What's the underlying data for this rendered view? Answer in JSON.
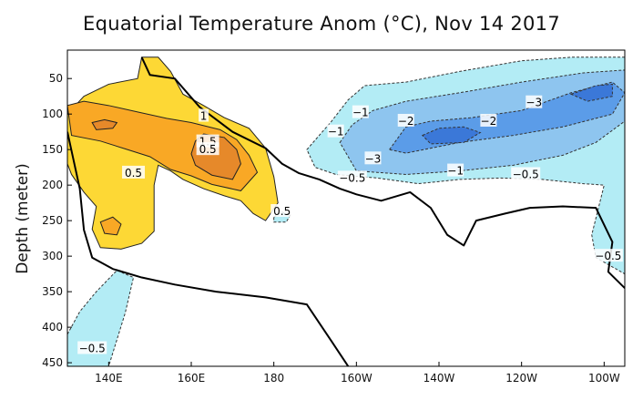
{
  "chart_data": {
    "type": "heatmap",
    "title": "Equatorial Temperature Anom (°C), Nov 14 2017",
    "ylabel": "Depth (meter)",
    "xlabel": "",
    "xlim": [
      130,
      265
    ],
    "ylim": [
      455,
      10
    ],
    "x_ticks": [
      {
        "value": 140,
        "label": "140E"
      },
      {
        "value": 160,
        "label": "160E"
      },
      {
        "value": 180,
        "label": "180"
      },
      {
        "value": 200,
        "label": "160W"
      },
      {
        "value": 220,
        "label": "140W"
      },
      {
        "value": 240,
        "label": "120W"
      },
      {
        "value": 260,
        "label": "100W"
      }
    ],
    "y_ticks": [
      50,
      100,
      150,
      200,
      250,
      300,
      350,
      400,
      450
    ],
    "colors": {
      "plus_0_5": "#fdd835",
      "plus_1": "#f9a825",
      "plus_1_5": "#e6892a",
      "minus_0_5": "#b3ecf5",
      "minus_1": "#8ec5ef",
      "minus_2": "#5b9ce8",
      "minus_3": "#3b78d8",
      "zero_line": "#000000",
      "pos_line": "#222222",
      "neg_line": "#333333"
    },
    "regions": [
      {
        "name": "warm_anom_0_5",
        "value": 0.5,
        "polygon": [
          [
            130,
            100
          ],
          [
            134,
            75
          ],
          [
            140,
            58
          ],
          [
            147,
            50
          ],
          [
            148,
            20
          ],
          [
            152,
            20
          ],
          [
            155,
            40
          ],
          [
            158,
            72
          ],
          [
            163,
            88
          ],
          [
            168,
            105
          ],
          [
            174,
            120
          ],
          [
            178,
            148
          ],
          [
            180,
            188
          ],
          [
            181,
            225
          ],
          [
            178,
            250
          ],
          [
            175,
            240
          ],
          [
            172,
            222
          ],
          [
            168,
            215
          ],
          [
            163,
            205
          ],
          [
            158,
            192
          ],
          [
            155,
            180
          ],
          [
            152,
            172
          ],
          [
            151,
            200
          ],
          [
            151,
            265
          ],
          [
            148,
            282
          ],
          [
            143,
            290
          ],
          [
            138,
            288
          ],
          [
            136,
            262
          ],
          [
            137,
            230
          ],
          [
            134,
            210
          ],
          [
            131,
            185
          ],
          [
            130,
            170
          ]
        ]
      },
      {
        "name": "warm_anom_1",
        "value": 1,
        "polygon": [
          [
            130,
            88
          ],
          [
            134,
            82
          ],
          [
            140,
            88
          ],
          [
            147,
            97
          ],
          [
            154,
            106
          ],
          [
            160,
            112
          ],
          [
            167,
            122
          ],
          [
            171,
            136
          ],
          [
            174,
            158
          ],
          [
            176,
            182
          ],
          [
            172,
            208
          ],
          [
            165,
            199
          ],
          [
            160,
            187
          ],
          [
            155,
            178
          ],
          [
            150,
            160
          ],
          [
            144,
            149
          ],
          [
            138,
            138
          ],
          [
            131,
            130
          ]
        ]
      },
      {
        "name": "warm_anom_1_5",
        "value": 1.5,
        "polygon": [
          [
            163,
            128
          ],
          [
            168,
            133
          ],
          [
            171,
            150
          ],
          [
            172,
            170
          ],
          [
            170,
            192
          ],
          [
            165,
            186
          ],
          [
            161,
            172
          ],
          [
            160,
            156
          ],
          [
            161,
            138
          ]
        ]
      },
      {
        "name": "warm_anom_1_5_b",
        "value": 1.5,
        "polygon": [
          [
            136,
            112
          ],
          [
            139,
            108
          ],
          [
            142,
            112
          ],
          [
            141,
            120
          ],
          [
            137,
            122
          ]
        ]
      },
      {
        "name": "warm_anom_1_deep",
        "value": 1,
        "polygon": [
          [
            138,
            252
          ],
          [
            141,
            245
          ],
          [
            143,
            255
          ],
          [
            142,
            270
          ],
          [
            139,
            268
          ]
        ]
      },
      {
        "name": "cool_anom_0_5",
        "value": -0.5,
        "polygon": [
          [
            188,
            150
          ],
          [
            194,
            110
          ],
          [
            198,
            80
          ],
          [
            202,
            60
          ],
          [
            212,
            55
          ],
          [
            225,
            40
          ],
          [
            240,
            25
          ],
          [
            252,
            20
          ],
          [
            265,
            20
          ],
          [
            265,
            325
          ],
          [
            258,
            302
          ],
          [
            257,
            270
          ],
          [
            260,
            200
          ],
          [
            255,
            198
          ],
          [
            245,
            192
          ],
          [
            235,
            190
          ],
          [
            225,
            192
          ],
          [
            215,
            198
          ],
          [
            205,
            190
          ],
          [
            195,
            185
          ],
          [
            190,
            175
          ]
        ]
      },
      {
        "name": "cool_anom_1",
        "value": -1,
        "polygon": [
          [
            196,
            140
          ],
          [
            199,
            115
          ],
          [
            204,
            95
          ],
          [
            212,
            82
          ],
          [
            225,
            70
          ],
          [
            240,
            55
          ],
          [
            255,
            42
          ],
          [
            265,
            38
          ],
          [
            265,
            110
          ],
          [
            258,
            140
          ],
          [
            250,
            158
          ],
          [
            238,
            172
          ],
          [
            225,
            180
          ],
          [
            212,
            185
          ],
          [
            200,
            180
          ]
        ]
      },
      {
        "name": "cool_anom_2",
        "value": -2,
        "polygon": [
          [
            208,
            150
          ],
          [
            212,
            118
          ],
          [
            218,
            110
          ],
          [
            228,
            105
          ],
          [
            240,
            95
          ],
          [
            252,
            70
          ],
          [
            262,
            55
          ],
          [
            265,
            70
          ],
          [
            262,
            100
          ],
          [
            250,
            118
          ],
          [
            238,
            130
          ],
          [
            225,
            140
          ],
          [
            212,
            155
          ]
        ]
      },
      {
        "name": "cool_anom_3",
        "value": -3,
        "polygon": [
          [
            216,
            130
          ],
          [
            220,
            120
          ],
          [
            226,
            118
          ],
          [
            230,
            126
          ],
          [
            226,
            140
          ],
          [
            218,
            142
          ]
        ]
      },
      {
        "name": "cool_anom_3_b",
        "value": -3,
        "polygon": [
          [
            252,
            72
          ],
          [
            258,
            60
          ],
          [
            262,
            58
          ],
          [
            262,
            75
          ],
          [
            256,
            82
          ]
        ]
      },
      {
        "name": "cool_anom_0_5_west",
        "value": -0.5,
        "polygon": [
          [
            130,
            410
          ],
          [
            133,
            378
          ],
          [
            137,
            350
          ],
          [
            142,
            320
          ],
          [
            146,
            330
          ],
          [
            144,
            380
          ],
          [
            140,
            455
          ],
          [
            130,
            455
          ]
        ]
      },
      {
        "name": "cool_anom_0_5_small",
        "value": -0.5,
        "polygon": [
          [
            180,
            245
          ],
          [
            182,
            238
          ],
          [
            184,
            242
          ],
          [
            183,
            252
          ],
          [
            180,
            252
          ]
        ]
      }
    ],
    "zero_contour": [
      [
        148,
        20
      ],
      [
        150,
        45
      ],
      [
        156,
        50
      ],
      [
        162,
        90
      ],
      [
        170,
        125
      ],
      [
        178,
        148
      ],
      [
        182,
        170
      ],
      [
        186,
        183
      ],
      [
        191,
        192
      ],
      [
        196,
        205
      ],
      [
        200,
        213
      ],
      [
        206,
        222
      ],
      [
        213,
        210
      ],
      [
        218,
        232
      ],
      [
        222,
        270
      ],
      [
        226,
        285
      ],
      [
        229,
        250
      ],
      [
        236,
        240
      ],
      [
        242,
        232
      ],
      [
        250,
        230
      ],
      [
        258,
        232
      ],
      [
        262,
        280
      ],
      [
        261,
        322
      ],
      [
        265,
        345
      ]
    ],
    "zero_contour_2": [
      [
        130,
        125
      ],
      [
        133,
        205
      ],
      [
        134,
        263
      ],
      [
        136,
        302
      ],
      [
        141,
        318
      ],
      [
        148,
        330
      ],
      [
        156,
        340
      ],
      [
        166,
        350
      ],
      [
        178,
        358
      ],
      [
        188,
        368
      ],
      [
        194,
        420
      ],
      [
        198,
        455
      ]
    ],
    "labels": [
      {
        "text": "1",
        "x": 163,
        "y": 103
      },
      {
        "text": "1.5",
        "x": 164,
        "y": 139
      },
      {
        "text": "0.5",
        "x": 164,
        "y": 150
      },
      {
        "text": "0.5",
        "x": 146,
        "y": 183
      },
      {
        "text": "0.5",
        "x": 182,
        "y": 237
      },
      {
        "text": "−1",
        "x": 201,
        "y": 98
      },
      {
        "text": "−1",
        "x": 195,
        "y": 125
      },
      {
        "text": "−2",
        "x": 212,
        "y": 110
      },
      {
        "text": "−2",
        "x": 232,
        "y": 110
      },
      {
        "text": "−3",
        "x": 243,
        "y": 84
      },
      {
        "text": "−3",
        "x": 204,
        "y": 163
      },
      {
        "text": "−1",
        "x": 224,
        "y": 180
      },
      {
        "text": "−0.5",
        "x": 199,
        "y": 190
      },
      {
        "text": "−0.5",
        "x": 241,
        "y": 185
      },
      {
        "text": "−0.5",
        "x": 261,
        "y": 300
      },
      {
        "text": "−0.5",
        "x": 136,
        "y": 430
      }
    ]
  }
}
